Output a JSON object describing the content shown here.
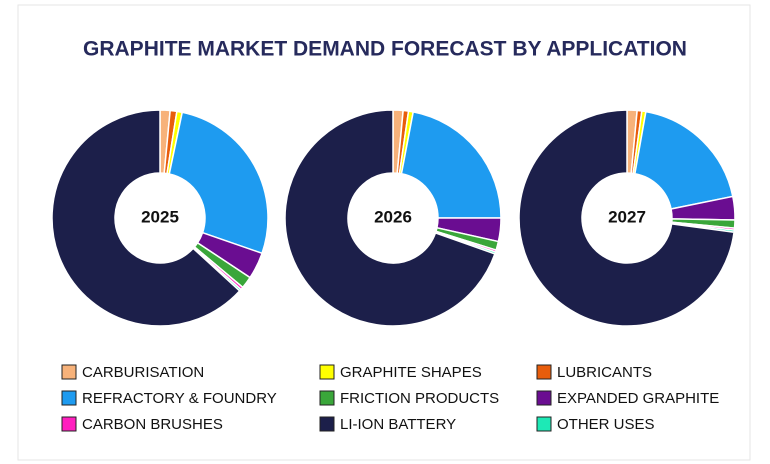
{
  "chart_data": {
    "type": "donut",
    "title": "GRAPHITE MARKET DEMAND FORECAST BY APPLICATION",
    "categories": [
      "CARBURISATION",
      "GRAPHITE SHAPES",
      "LUBRICANTS",
      "REFRACTORY & FOUNDRY",
      "FRICTION PRODUCTS",
      "EXPANDED GRAPHITE",
      "CARBON BRUSHES",
      "LI-ION BATTERY",
      "OTHER USES"
    ],
    "colors": [
      "#f7b27a",
      "#ffff00",
      "#e85d0c",
      "#1e9bf0",
      "#3aa63a",
      "#6a0d91",
      "#ff1fbf",
      "#1c1f4a",
      "#1de9b6"
    ],
    "series": [
      {
        "name": "2025",
        "values": [
          1.5,
          0.8,
          1,
          27,
          1.8,
          4,
          0.4,
          63.2,
          0.3
        ]
      },
      {
        "name": "2026",
        "values": [
          1.5,
          0.7,
          0.8,
          22,
          1.3,
          3.5,
          0.3,
          69.6,
          0.3
        ]
      },
      {
        "name": "2027",
        "values": [
          1.5,
          0.6,
          0.7,
          19,
          1.2,
          3.5,
          0.3,
          72.9,
          0.3
        ]
      }
    ]
  }
}
